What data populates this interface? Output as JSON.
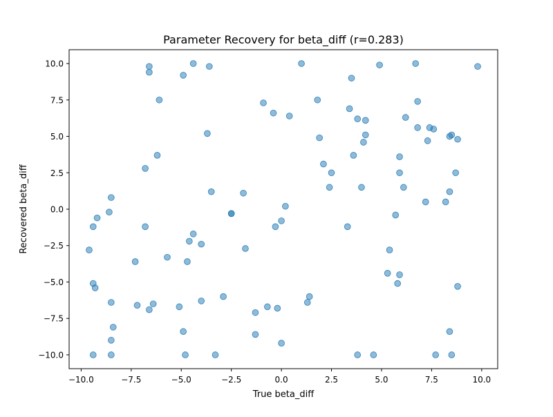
{
  "chart_data": {
    "type": "scatter",
    "title": "Parameter Recovery for beta_diff (r=0.283)",
    "xlabel": "True beta_diff",
    "ylabel": "Recovered beta_diff",
    "xlim": [
      -10.6,
      10.8
    ],
    "ylim": [
      -10.95,
      10.95
    ],
    "xticks": [
      -10.0,
      -7.5,
      -5.0,
      -2.5,
      0.0,
      2.5,
      5.0,
      7.5,
      10.0
    ],
    "yticks": [
      -10.0,
      -7.5,
      -5.0,
      -2.5,
      0.0,
      2.5,
      5.0,
      7.5,
      10.0
    ],
    "xtick_labels": [
      "−10.0",
      "−7.5",
      "−5.0",
      "−2.5",
      "0.0",
      "2.5",
      "5.0",
      "7.5",
      "10.0"
    ],
    "ytick_labels": [
      "−10.0",
      "−7.5",
      "−5.0",
      "−2.5",
      "0.0",
      "2.5",
      "5.0",
      "7.5",
      "10.0"
    ],
    "grid": false,
    "marker_color": "#1f77b4",
    "marker_alpha": 0.5,
    "points": [
      [
        -6.6,
        9.8
      ],
      [
        -6.6,
        9.4
      ],
      [
        -4.4,
        10.0
      ],
      [
        -3.6,
        9.8
      ],
      [
        -4.9,
        9.2
      ],
      [
        1.0,
        10.0
      ],
      [
        4.9,
        9.9
      ],
      [
        6.7,
        10.0
      ],
      [
        9.8,
        9.8
      ],
      [
        3.5,
        9.0
      ],
      [
        -6.1,
        7.5
      ],
      [
        -0.9,
        7.3
      ],
      [
        -0.4,
        6.6
      ],
      [
        0.4,
        6.4
      ],
      [
        1.8,
        7.5
      ],
      [
        3.4,
        6.9
      ],
      [
        3.8,
        6.2
      ],
      [
        4.2,
        6.1
      ],
      [
        6.2,
        6.3
      ],
      [
        6.8,
        7.4
      ],
      [
        -3.7,
        5.2
      ],
      [
        1.9,
        4.9
      ],
      [
        4.2,
        5.1
      ],
      [
        4.1,
        4.6
      ],
      [
        6.8,
        5.6
      ],
      [
        7.4,
        5.6
      ],
      [
        7.6,
        5.5
      ],
      [
        7.3,
        4.7
      ],
      [
        8.4,
        5.0
      ],
      [
        8.5,
        5.1
      ],
      [
        8.8,
        4.8
      ],
      [
        -6.2,
        3.7
      ],
      [
        -6.8,
        2.8
      ],
      [
        2.1,
        3.1
      ],
      [
        2.5,
        2.5
      ],
      [
        3.6,
        3.7
      ],
      [
        5.9,
        3.6
      ],
      [
        5.9,
        2.5
      ],
      [
        8.7,
        2.5
      ],
      [
        2.4,
        1.5
      ],
      [
        4.0,
        1.5
      ],
      [
        6.1,
        1.5
      ],
      [
        8.4,
        1.2
      ],
      [
        -3.5,
        1.2
      ],
      [
        -1.9,
        1.1
      ],
      [
        -8.5,
        0.8
      ],
      [
        0.2,
        0.2
      ],
      [
        7.2,
        0.5
      ],
      [
        8.2,
        0.5
      ],
      [
        -8.6,
        -0.2
      ],
      [
        -2.5,
        -0.3
      ],
      [
        -2.5,
        -0.3
      ],
      [
        -9.2,
        -0.6
      ],
      [
        0.0,
        -0.8
      ],
      [
        5.7,
        -0.4
      ],
      [
        -9.4,
        -1.2
      ],
      [
        -6.8,
        -1.2
      ],
      [
        -0.3,
        -1.2
      ],
      [
        3.3,
        -1.2
      ],
      [
        -4.4,
        -1.7
      ],
      [
        -4.6,
        -2.2
      ],
      [
        -4.0,
        -2.4
      ],
      [
        -9.6,
        -2.8
      ],
      [
        -1.8,
        -2.7
      ],
      [
        5.4,
        -2.8
      ],
      [
        -7.3,
        -3.6
      ],
      [
        -5.7,
        -3.3
      ],
      [
        -4.7,
        -3.6
      ],
      [
        -9.4,
        -5.1
      ],
      [
        -9.3,
        -5.4
      ],
      [
        5.3,
        -4.4
      ],
      [
        5.9,
        -4.5
      ],
      [
        5.8,
        -5.1
      ],
      [
        8.8,
        -5.3
      ],
      [
        -8.5,
        -6.4
      ],
      [
        -7.2,
        -6.6
      ],
      [
        -6.4,
        -6.5
      ],
      [
        -6.6,
        -6.9
      ],
      [
        -5.1,
        -6.7
      ],
      [
        -4.0,
        -6.3
      ],
      [
        -2.9,
        -6.0
      ],
      [
        -0.7,
        -6.7
      ],
      [
        -0.2,
        -6.8
      ],
      [
        -1.3,
        -7.1
      ],
      [
        1.4,
        -6.0
      ],
      [
        1.3,
        -6.4
      ],
      [
        -8.4,
        -8.1
      ],
      [
        -4.9,
        -8.4
      ],
      [
        -1.3,
        -8.6
      ],
      [
        8.4,
        -8.4
      ],
      [
        -8.5,
        -9.0
      ],
      [
        0.0,
        -9.2
      ],
      [
        -9.4,
        -10.0
      ],
      [
        -8.5,
        -10.0
      ],
      [
        -4.8,
        -10.0
      ],
      [
        -3.3,
        -10.0
      ],
      [
        3.8,
        -10.0
      ],
      [
        4.6,
        -10.0
      ],
      [
        7.7,
        -10.0
      ],
      [
        8.5,
        -10.0
      ]
    ]
  }
}
